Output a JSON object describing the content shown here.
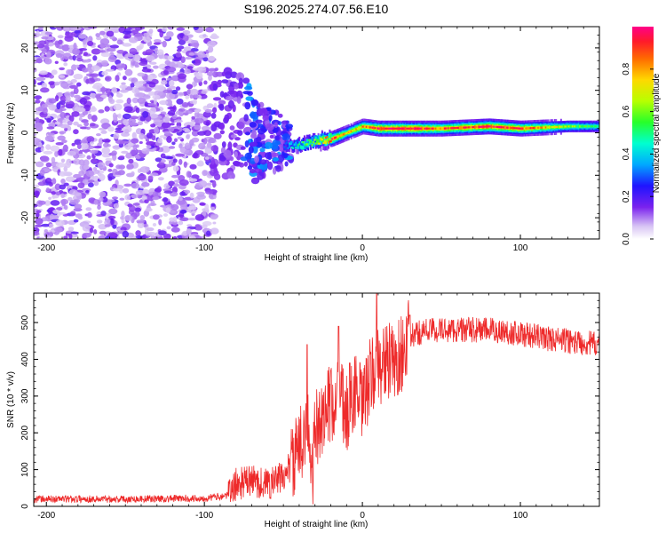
{
  "title": "S196.2025.274.07.56.E10",
  "colors": {
    "signal_line": "#ee2a2a",
    "background": "#ffffff",
    "axis": "#000000"
  },
  "chart_data": [
    {
      "id": "spectrogram",
      "type": "heatmap",
      "title": "S196.2025.274.07.56.E10",
      "xlabel": "Height of straight line (km)",
      "ylabel": "Frequency (Hz)",
      "xlim": [
        -208,
        150
      ],
      "ylim": [
        -25,
        25
      ],
      "xticks": [
        -200,
        -100,
        0,
        100
      ],
      "yticks": [
        -20,
        -10,
        0,
        10,
        20
      ],
      "colorbar": {
        "label": "Normalized spectral amplitude",
        "range": [
          0,
          1
        ],
        "ticks": [
          0.0,
          0.2,
          0.4,
          0.6,
          0.8
        ],
        "colormap": "rainbow-violet-to-magenta"
      },
      "ridge_frequency": [
        {
          "height": -50,
          "freq": -3
        },
        {
          "height": -40,
          "freq": -3
        },
        {
          "height": -30,
          "freq": -2
        },
        {
          "height": -20,
          "freq": -1.5
        },
        {
          "height": -10,
          "freq": 0
        },
        {
          "height": 0,
          "freq": 1.5
        },
        {
          "height": 10,
          "freq": 1
        },
        {
          "height": 30,
          "freq": 1
        },
        {
          "height": 50,
          "freq": 1
        },
        {
          "height": 80,
          "freq": 1.5
        },
        {
          "height": 100,
          "freq": 1
        },
        {
          "height": 130,
          "freq": 1.5
        },
        {
          "height": 150,
          "freq": 1.5
        }
      ],
      "ridge_amplitude": [
        {
          "height": -50,
          "amp": 0.3
        },
        {
          "height": -40,
          "amp": 0.5
        },
        {
          "height": -30,
          "amp": 0.6
        },
        {
          "height": -20,
          "amp": 0.9
        },
        {
          "height": -10,
          "amp": 0.7
        },
        {
          "height": 0,
          "amp": 0.8
        },
        {
          "height": 10,
          "amp": 0.95
        },
        {
          "height": 30,
          "amp": 0.95
        },
        {
          "height": 50,
          "amp": 0.85
        },
        {
          "height": 80,
          "amp": 0.95
        },
        {
          "height": 100,
          "amp": 0.9
        },
        {
          "height": 130,
          "amp": 0.6
        },
        {
          "height": 150,
          "amp": 0.5
        }
      ],
      "noise_region": {
        "height_range": [
          -208,
          -93
        ],
        "freq_range": [
          -25,
          25
        ]
      }
    },
    {
      "id": "snr",
      "type": "line",
      "xlabel": "Height of straight line (km)",
      "ylabel": "SNR (10 * v/v)",
      "xlim": [
        -208,
        150
      ],
      "ylim": [
        0,
        580
      ],
      "xticks": [
        -200,
        -100,
        0,
        100
      ],
      "yticks": [
        0,
        100,
        200,
        300,
        400,
        500
      ],
      "series": [
        {
          "name": "SNR",
          "points": [
            {
              "x": -208,
              "y": 20
            },
            {
              "x": -150,
              "y": 20
            },
            {
              "x": -100,
              "y": 22
            },
            {
              "x": -85,
              "y": 30
            },
            {
              "x": -80,
              "y": 60
            },
            {
              "x": -70,
              "y": 70
            },
            {
              "x": -60,
              "y": 60
            },
            {
              "x": -50,
              "y": 80
            },
            {
              "x": -40,
              "y": 150
            },
            {
              "x": -35,
              "y": 250
            },
            {
              "x": -32,
              "y": 60
            },
            {
              "x": -30,
              "y": 200
            },
            {
              "x": -25,
              "y": 250
            },
            {
              "x": -20,
              "y": 280
            },
            {
              "x": -15,
              "y": 300
            },
            {
              "x": -10,
              "y": 250
            },
            {
              "x": -5,
              "y": 320
            },
            {
              "x": 0,
              "y": 270
            },
            {
              "x": 5,
              "y": 350
            },
            {
              "x": 10,
              "y": 380
            },
            {
              "x": 15,
              "y": 400
            },
            {
              "x": 20,
              "y": 380
            },
            {
              "x": 25,
              "y": 420
            },
            {
              "x": 30,
              "y": 460
            },
            {
              "x": 40,
              "y": 480
            },
            {
              "x": 60,
              "y": 480
            },
            {
              "x": 80,
              "y": 480
            },
            {
              "x": 100,
              "y": 470
            },
            {
              "x": 120,
              "y": 455
            },
            {
              "x": 150,
              "y": 440
            }
          ],
          "peaks": [
            {
              "x": -35,
              "y": 440
            },
            {
              "x": -20,
              "y": 370
            },
            {
              "x": -15,
              "y": 490
            },
            {
              "x": -8,
              "y": 390
            },
            {
              "x": 9,
              "y": 580
            },
            {
              "x": 30,
              "y": 520
            }
          ]
        }
      ]
    }
  ]
}
